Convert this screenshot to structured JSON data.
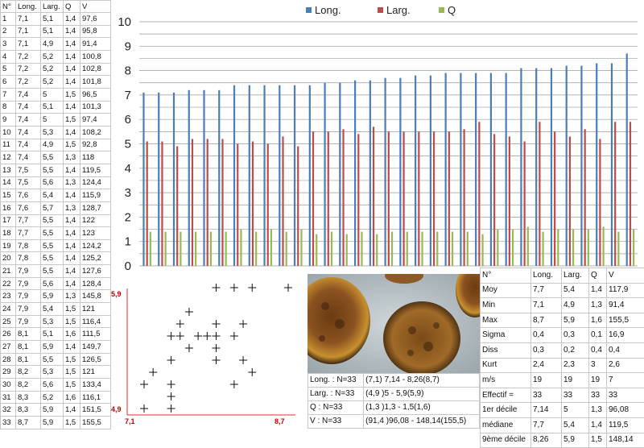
{
  "specimen_table": {
    "headers": [
      "N°",
      "Long.",
      "Larg.",
      "Q",
      "V"
    ],
    "rows": [
      [
        "1",
        "7,1",
        "5,1",
        "1,4",
        "97,6"
      ],
      [
        "2",
        "7,1",
        "5,1",
        "1,4",
        "95,8"
      ],
      [
        "3",
        "7,1",
        "4,9",
        "1,4",
        "91,4"
      ],
      [
        "4",
        "7,2",
        "5,2",
        "1,4",
        "100,8"
      ],
      [
        "5",
        "7,2",
        "5,2",
        "1,4",
        "102,8"
      ],
      [
        "6",
        "7,2",
        "5,2",
        "1,4",
        "101,8"
      ],
      [
        "7",
        "7,4",
        "5",
        "1,5",
        "96,5"
      ],
      [
        "8",
        "7,4",
        "5,1",
        "1,4",
        "101,3"
      ],
      [
        "9",
        "7,4",
        "5",
        "1,5",
        "97,4"
      ],
      [
        "10",
        "7,4",
        "5,3",
        "1,4",
        "108,2"
      ],
      [
        "11",
        "7,4",
        "4,9",
        "1,5",
        "92,8"
      ],
      [
        "12",
        "7,4",
        "5,5",
        "1,3",
        "118"
      ],
      [
        "13",
        "7,5",
        "5,5",
        "1,4",
        "119,5"
      ],
      [
        "14",
        "7,5",
        "5,6",
        "1,3",
        "124,4"
      ],
      [
        "15",
        "7,6",
        "5,4",
        "1,4",
        "115,9"
      ],
      [
        "16",
        "7,6",
        "5,7",
        "1,3",
        "128,7"
      ],
      [
        "17",
        "7,7",
        "5,5",
        "1,4",
        "122"
      ],
      [
        "18",
        "7,7",
        "5,5",
        "1,4",
        "123"
      ],
      [
        "19",
        "7,8",
        "5,5",
        "1,4",
        "124,2"
      ],
      [
        "20",
        "7,8",
        "5,5",
        "1,4",
        "125,2"
      ],
      [
        "21",
        "7,9",
        "5,5",
        "1,4",
        "127,6"
      ],
      [
        "22",
        "7,9",
        "5,6",
        "1,4",
        "128,4"
      ],
      [
        "23",
        "7,9",
        "5,9",
        "1,3",
        "145,8"
      ],
      [
        "24",
        "7,9",
        "5,4",
        "1,5",
        "121"
      ],
      [
        "25",
        "7,9",
        "5,3",
        "1,5",
        "116,4"
      ],
      [
        "26",
        "8,1",
        "5,1",
        "1,6",
        "111,5"
      ],
      [
        "27",
        "8,1",
        "5,9",
        "1,4",
        "149,7"
      ],
      [
        "28",
        "8,1",
        "5,5",
        "1,5",
        "126,5"
      ],
      [
        "29",
        "8,2",
        "5,3",
        "1,5",
        "121"
      ],
      [
        "30",
        "8,2",
        "5,6",
        "1,5",
        "133,4"
      ],
      [
        "31",
        "8,3",
        "5,2",
        "1,6",
        "116,1"
      ],
      [
        "32",
        "8,3",
        "5,9",
        "1,4",
        "151,5"
      ],
      [
        "33",
        "8,7",
        "5,9",
        "1,5",
        "155,5"
      ]
    ]
  },
  "chart_data": [
    {
      "type": "bar",
      "title": "",
      "legend_position": "top",
      "categories": [
        "1",
        "2",
        "3",
        "4",
        "5",
        "6",
        "7",
        "8",
        "9",
        "10",
        "11",
        "12",
        "13",
        "14",
        "15",
        "16",
        "17",
        "18",
        "19",
        "20",
        "21",
        "22",
        "23",
        "24",
        "25",
        "26",
        "27",
        "28",
        "29",
        "30",
        "31",
        "32",
        "33"
      ],
      "series": [
        {
          "name": "Long.",
          "color": "#4a7ebb",
          "values": [
            7.1,
            7.1,
            7.1,
            7.2,
            7.2,
            7.2,
            7.4,
            7.4,
            7.4,
            7.4,
            7.4,
            7.4,
            7.5,
            7.5,
            7.6,
            7.6,
            7.7,
            7.7,
            7.8,
            7.8,
            7.9,
            7.9,
            7.9,
            7.9,
            7.9,
            8.1,
            8.1,
            8.1,
            8.2,
            8.2,
            8.3,
            8.3,
            8.7
          ]
        },
        {
          "name": "Larg.",
          "color": "#be4b48",
          "values": [
            5.1,
            5.1,
            4.9,
            5.2,
            5.2,
            5.2,
            5.0,
            5.1,
            5.0,
            5.3,
            4.9,
            5.5,
            5.5,
            5.6,
            5.4,
            5.7,
            5.5,
            5.5,
            5.5,
            5.5,
            5.5,
            5.6,
            5.9,
            5.4,
            5.3,
            5.1,
            5.9,
            5.5,
            5.3,
            5.6,
            5.2,
            5.9,
            5.9
          ]
        },
        {
          "name": "Q",
          "color": "#98b954",
          "values": [
            1.4,
            1.4,
            1.4,
            1.4,
            1.4,
            1.4,
            1.5,
            1.4,
            1.5,
            1.4,
            1.5,
            1.3,
            1.4,
            1.3,
            1.4,
            1.3,
            1.4,
            1.4,
            1.4,
            1.4,
            1.4,
            1.4,
            1.3,
            1.5,
            1.5,
            1.6,
            1.4,
            1.5,
            1.5,
            1.5,
            1.6,
            1.4,
            1.5
          ]
        }
      ],
      "ylim": [
        0,
        10
      ],
      "y_ticks": [
        "0",
        "1",
        "2",
        "3",
        "4",
        "5",
        "6",
        "7",
        "8",
        "9",
        "10"
      ],
      "grid": true
    },
    {
      "type": "scatter",
      "marker": "+",
      "x_labels": [
        "7,1",
        "8,7"
      ],
      "y_labels": [
        "4,9",
        "5,9"
      ],
      "xlim": [
        7.1,
        8.7
      ],
      "ylim": [
        4.9,
        5.9
      ],
      "points": [
        [
          7.1,
          5.1
        ],
        [
          7.1,
          4.9
        ],
        [
          7.2,
          5.2
        ],
        [
          7.4,
          5.0
        ],
        [
          7.4,
          5.1
        ],
        [
          7.4,
          5.3
        ],
        [
          7.4,
          4.9
        ],
        [
          7.4,
          5.5
        ],
        [
          7.5,
          5.5
        ],
        [
          7.5,
          5.6
        ],
        [
          7.6,
          5.4
        ],
        [
          7.6,
          5.7
        ],
        [
          7.7,
          5.5
        ],
        [
          7.8,
          5.5
        ],
        [
          7.9,
          5.5
        ],
        [
          7.9,
          5.6
        ],
        [
          7.9,
          5.9
        ],
        [
          7.9,
          5.4
        ],
        [
          7.9,
          5.3
        ],
        [
          8.1,
          5.1
        ],
        [
          8.1,
          5.9
        ],
        [
          8.1,
          5.5
        ],
        [
          8.2,
          5.3
        ],
        [
          8.2,
          5.6
        ],
        [
          8.3,
          5.2
        ],
        [
          8.3,
          5.9
        ],
        [
          8.7,
          5.9
        ]
      ]
    }
  ],
  "ranges": [
    [
      "Long. : N=33",
      "(7,1) 7,14 - 8,26(8,7)"
    ],
    [
      "Larg. : N=33",
      "(4,9 )5 - 5,9(5,9)"
    ],
    [
      "Q : N=33",
      "(1,3 )1,3 - 1,5(1,6)"
    ],
    [
      "V : N=33",
      "(91,4 )96,08 - 148,14(155,5)"
    ]
  ],
  "stats_table": {
    "headers": [
      "N°",
      "Long.",
      "Larg.",
      "Q",
      "V"
    ],
    "rows": [
      [
        "Moy",
        "7,7",
        "5,4",
        "1,4",
        "117,9"
      ],
      [
        "Min",
        "7,1",
        "4,9",
        "1,3",
        "91,4"
      ],
      [
        "Max",
        "8,7",
        "5,9",
        "1,6",
        "155,5"
      ],
      [
        "Sigma",
        "0,4",
        "0,3",
        "0,1",
        "16,9"
      ],
      [
        "Diss",
        "0,3",
        "0,2",
        "0,4",
        "0,4"
      ],
      [
        "Kurt",
        "2,4",
        "2,3",
        "3",
        "2,6"
      ],
      [
        "m/s",
        "19",
        "19",
        "19",
        "7"
      ],
      [
        "Effectif =",
        "33",
        "33",
        "33",
        "33"
      ],
      [
        "1er décile",
        "7,14",
        "5",
        "1,3",
        "96,08"
      ],
      [
        "médiane",
        "7,7",
        "5,4",
        "1,4",
        "119,5"
      ],
      [
        "9ème décile",
        "8,26",
        "5,9",
        "1,5",
        "148,14"
      ]
    ]
  },
  "colors": {
    "grid": "#9a9a9a",
    "scatter_axis": "#e03030",
    "scatter_label": "#cc0000"
  }
}
